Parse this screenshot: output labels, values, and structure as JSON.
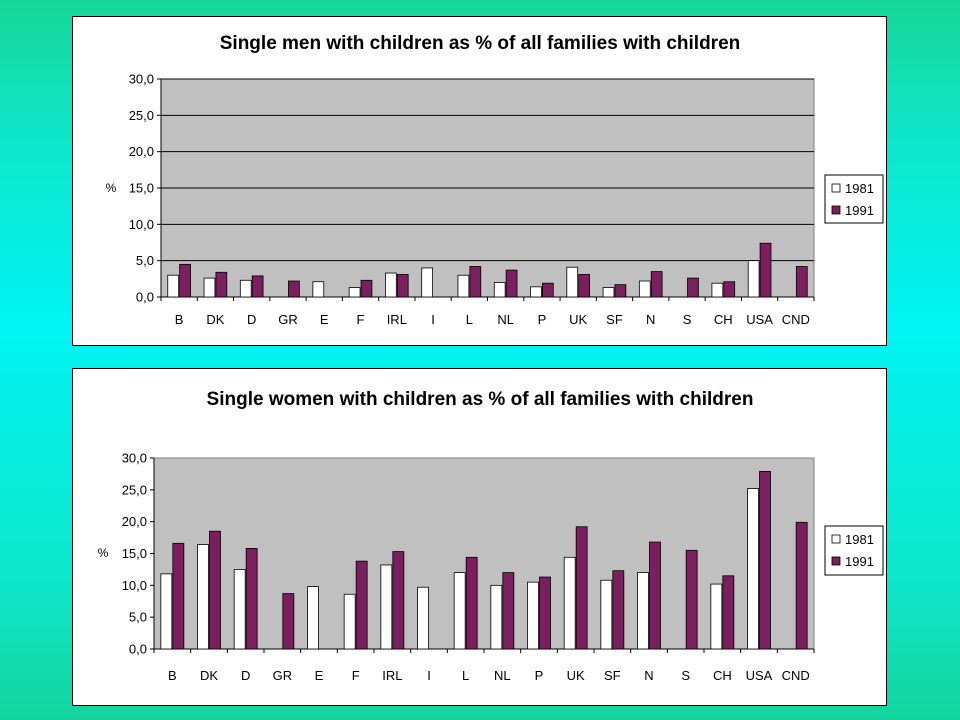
{
  "colors": {
    "plot_background": "#c0c0c0",
    "series_1981": "#ffffff",
    "series_1991": "#7b1f5e",
    "outline": "#000000"
  },
  "chart_data": [
    {
      "type": "bar",
      "title": "Single men with children as % of all families with children",
      "ylabel": "%",
      "xlabel": "",
      "ylim": [
        0,
        30
      ],
      "yticks": [
        "0,0",
        "5,0",
        "10,0",
        "15,0",
        "20,0",
        "25,0",
        "30,0"
      ],
      "grid": true,
      "legend_position": "right",
      "categories": [
        "B",
        "DK",
        "D",
        "GR",
        "E",
        "F",
        "IRL",
        "I",
        "L",
        "NL",
        "P",
        "UK",
        "SF",
        "N",
        "S",
        "CH",
        "USA",
        "CND"
      ],
      "series": [
        {
          "name": "1981",
          "values": [
            3.0,
            2.6,
            2.3,
            null,
            2.1,
            1.3,
            3.3,
            4.0,
            3.0,
            2.0,
            1.4,
            4.1,
            1.3,
            2.2,
            null,
            1.9,
            5.0,
            null
          ]
        },
        {
          "name": "1991",
          "values": [
            4.5,
            3.4,
            2.9,
            2.2,
            null,
            2.3,
            3.1,
            null,
            4.2,
            3.7,
            1.9,
            3.1,
            1.7,
            3.5,
            2.6,
            2.1,
            7.4,
            4.2
          ]
        }
      ]
    },
    {
      "type": "bar",
      "title": "Single women with children as % of all families with children",
      "ylabel": "%",
      "xlabel": "",
      "ylim": [
        0,
        30
      ],
      "yticks": [
        "0,0",
        "5,0",
        "10,0",
        "15,0",
        "20,0",
        "25,0",
        "30,0"
      ],
      "grid": false,
      "legend_position": "right",
      "categories": [
        "B",
        "DK",
        "D",
        "GR",
        "E",
        "F",
        "IRL",
        "I",
        "L",
        "NL",
        "P",
        "UK",
        "SF",
        "N",
        "S",
        "CH",
        "USA",
        "CND"
      ],
      "series": [
        {
          "name": "1981",
          "values": [
            11.8,
            16.4,
            12.5,
            null,
            9.8,
            8.6,
            13.2,
            9.7,
            12.0,
            10.0,
            10.5,
            14.4,
            10.8,
            12.0,
            null,
            10.2,
            25.2,
            null
          ]
        },
        {
          "name": "1991",
          "values": [
            16.6,
            18.5,
            15.8,
            8.7,
            null,
            13.8,
            15.3,
            null,
            14.4,
            12.0,
            11.3,
            19.2,
            12.3,
            16.8,
            15.5,
            11.5,
            27.9,
            19.9
          ]
        }
      ]
    }
  ]
}
